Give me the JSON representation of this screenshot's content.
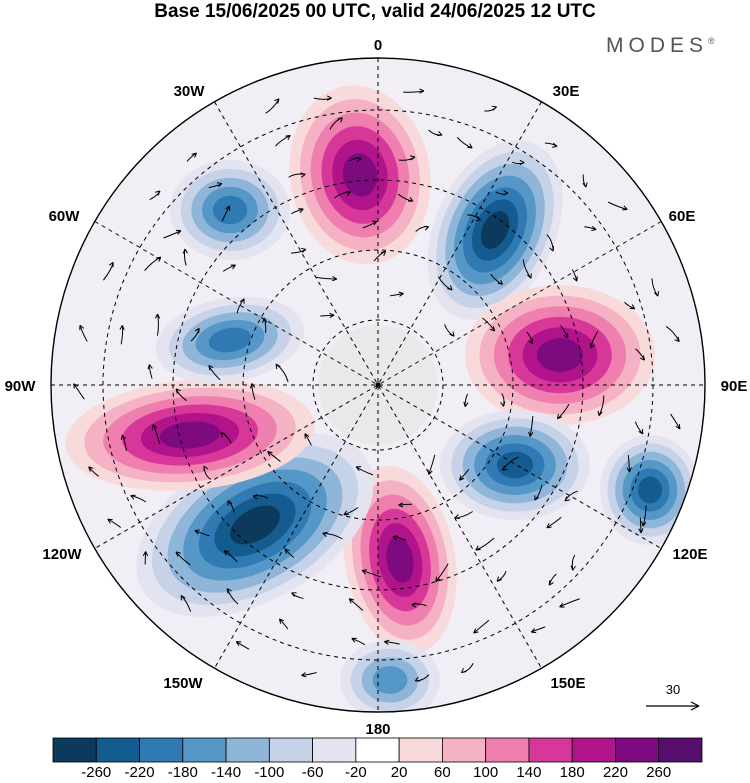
{
  "title": "Base 15/06/2025 00 UTC, valid 24/06/2025 12 UTC",
  "brand": "MODES",
  "brand_mark": "®",
  "map": {
    "projection": "south-polar-stereographic",
    "longitude_labels": {
      "lon_0": "0",
      "lon_30e": "30E",
      "lon_60e": "60E",
      "lon_90e": "90E",
      "lon_120e": "120E",
      "lon_150e": "150E",
      "lon_180": "180",
      "lon_150w": "150W",
      "lon_120w": "120W",
      "lon_90w": "90W",
      "lon_60w": "60W",
      "lon_30w": "30W"
    },
    "anomaly_centers": [
      {
        "name": "positive-anomaly-0",
        "sign": "positive",
        "level": 260
      },
      {
        "name": "negative-anomaly-30e",
        "sign": "negative",
        "level": -260
      },
      {
        "name": "positive-anomaly-80e",
        "sign": "positive",
        "level": 260
      },
      {
        "name": "negative-anomaly-120e",
        "sign": "negative",
        "level": -220
      },
      {
        "name": "negative-anomaly-110e",
        "sign": "negative",
        "level": -220
      },
      {
        "name": "positive-anomaly-165w",
        "sign": "positive",
        "level": 260
      },
      {
        "name": "negative-anomaly-130w",
        "sign": "negative",
        "level": -260
      },
      {
        "name": "positive-anomaly-100w",
        "sign": "positive",
        "level": 260
      },
      {
        "name": "negative-anomaly-80w",
        "sign": "negative",
        "level": -180
      },
      {
        "name": "negative-anomaly-40w",
        "sign": "negative",
        "level": -180
      },
      {
        "name": "negative-anomaly-175e",
        "sign": "negative",
        "level": -140
      }
    ],
    "reference_vector": "30"
  },
  "colorbar": {
    "labels": [
      "-260",
      "-220",
      "-180",
      "-140",
      "-100",
      "-60",
      "-20",
      "20",
      "60",
      "100",
      "140",
      "180",
      "220",
      "260"
    ],
    "colors": [
      "#0b3a5c",
      "#145c8f",
      "#2f7ab3",
      "#5598c7",
      "#8fb5d8",
      "#c5d2e8",
      "#e4e4f1",
      "#ffffff",
      "#f9dada",
      "#f6b2c5",
      "#ef7fae",
      "#d8379a",
      "#b0138a",
      "#7e0a7f",
      "#560f6e"
    ]
  }
}
